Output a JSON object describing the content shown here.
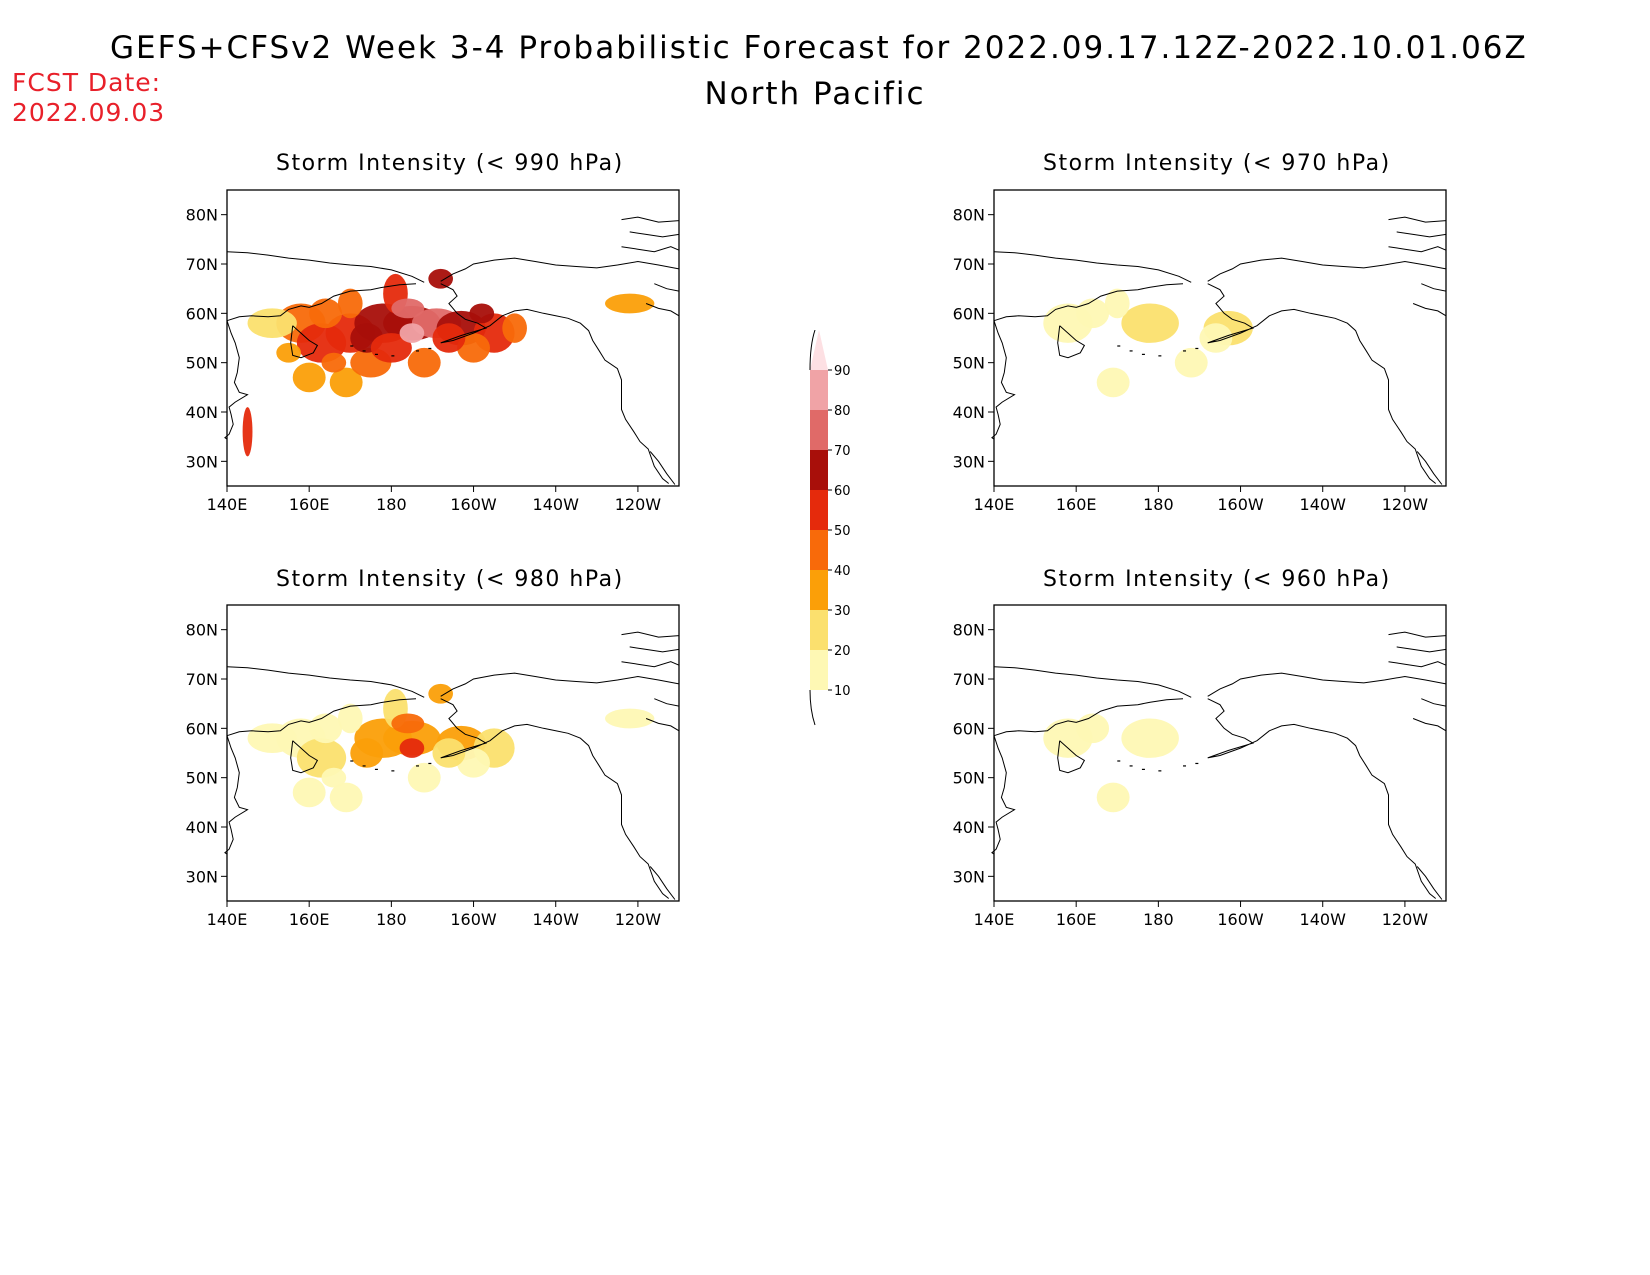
{
  "header": {
    "title": "GEFS+CFSv2 Week 3-4 Probabilistic Forecast for 2022.09.17.12Z-2022.10.01.06Z",
    "subtitle": "North Pacific",
    "fcst_label": "FCST Date:",
    "fcst_date": "2022.09.03"
  },
  "map_axes": {
    "lon_ticks": [
      "140E",
      "160E",
      "180",
      "160W",
      "140W",
      "120W"
    ],
    "lat_ticks": [
      "80N",
      "70N",
      "60N",
      "50N",
      "40N",
      "30N"
    ]
  },
  "colorbar": {
    "labels": [
      "90",
      "80",
      "70",
      "60",
      "50",
      "40",
      "30",
      "20",
      "10"
    ],
    "colors": [
      "#fde0e3",
      "#f0a3a6",
      "#e06a68",
      "#a80f0a",
      "#e52a0c",
      "#f86a0a",
      "#fb9f08",
      "#fbe06e",
      "#fef8b4"
    ]
  },
  "panels": [
    {
      "id": "p990",
      "title": "Storm Intensity (< 990 hPa)",
      "intensity": 1.0
    },
    {
      "id": "p970",
      "title": "Storm Intensity (< 970 hPa)",
      "intensity": 0.18
    },
    {
      "id": "p980",
      "title": "Storm Intensity (< 980 hPa)",
      "intensity": 0.45
    },
    {
      "id": "p960",
      "title": "Storm Intensity (< 960 hPa)",
      "intensity": 0.08
    }
  ]
}
